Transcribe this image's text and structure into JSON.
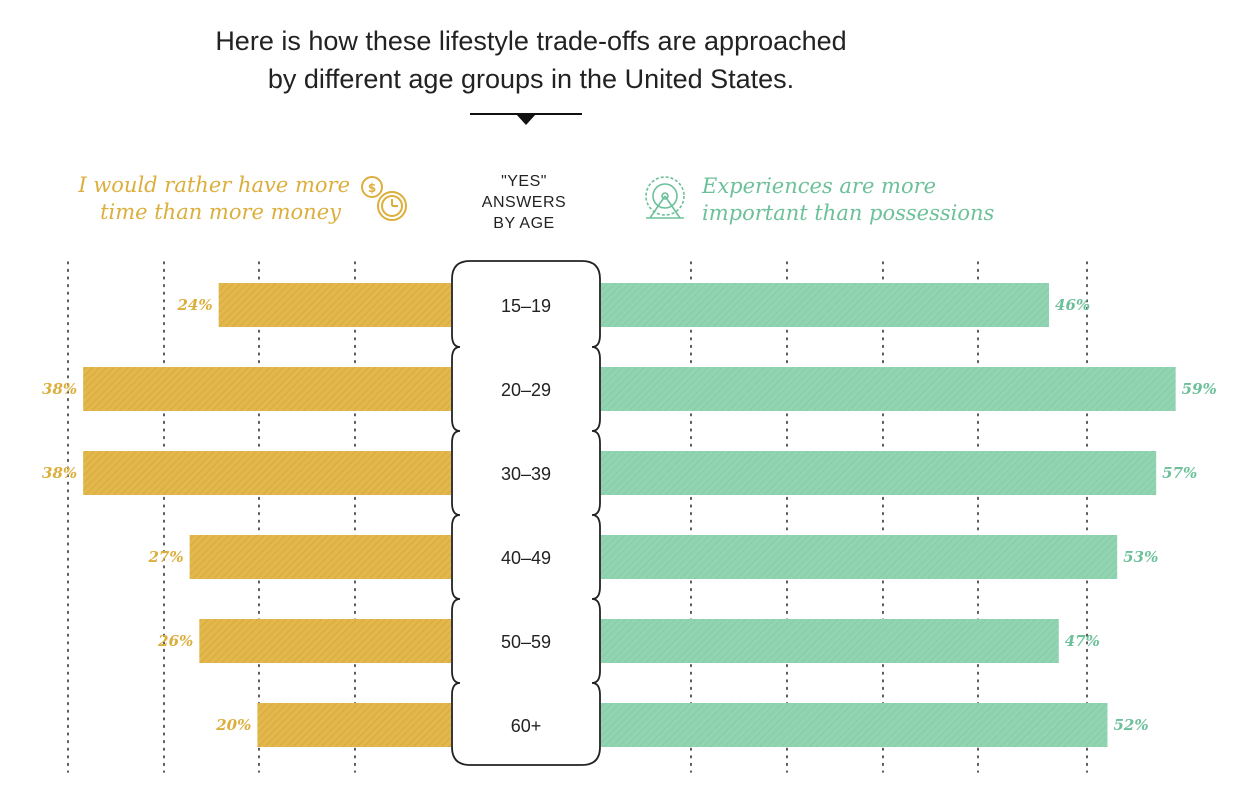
{
  "title_lines": [
    "Here is how these lifestyle trade-offs are approached",
    "by different age groups in the United States."
  ],
  "colors": {
    "money_bar": "#e2b74b",
    "money_text": "#dcae3c",
    "experience_bar": "#92d4b2",
    "experience_text": "#6cc09a",
    "grid": "#333333",
    "pill_stroke": "#222222"
  },
  "icons": {
    "left_legend": "coins-clock-icon",
    "right_legend": "ferris-wheel-icon"
  },
  "chart_data": {
    "type": "bar",
    "orientation": "diverging-horizontal",
    "center_header": [
      "\"YES\"",
      "ANSWERS",
      "BY AGE"
    ],
    "categories": [
      "15–19",
      "20–29",
      "30–39",
      "40–49",
      "50–59",
      "60+"
    ],
    "series": [
      {
        "name": "I would rather have more time than more money",
        "name_lines": [
          "I would rather have more",
          "time than more money"
        ],
        "side": "left",
        "values": [
          24,
          38,
          38,
          27,
          26,
          20
        ],
        "labels": [
          "24%",
          "38%",
          "38%",
          "27%",
          "26%",
          "20%"
        ]
      },
      {
        "name": "Experiences are more important than possessions",
        "name_lines": [
          "Experiences are more",
          "important than possessions"
        ],
        "side": "right",
        "values": [
          46,
          59,
          57,
          53,
          47,
          52
        ],
        "labels": [
          "46%",
          "59%",
          "57%",
          "53%",
          "47%",
          "52%"
        ]
      }
    ],
    "value_unit": "%",
    "grid": "dotted-vertical"
  }
}
